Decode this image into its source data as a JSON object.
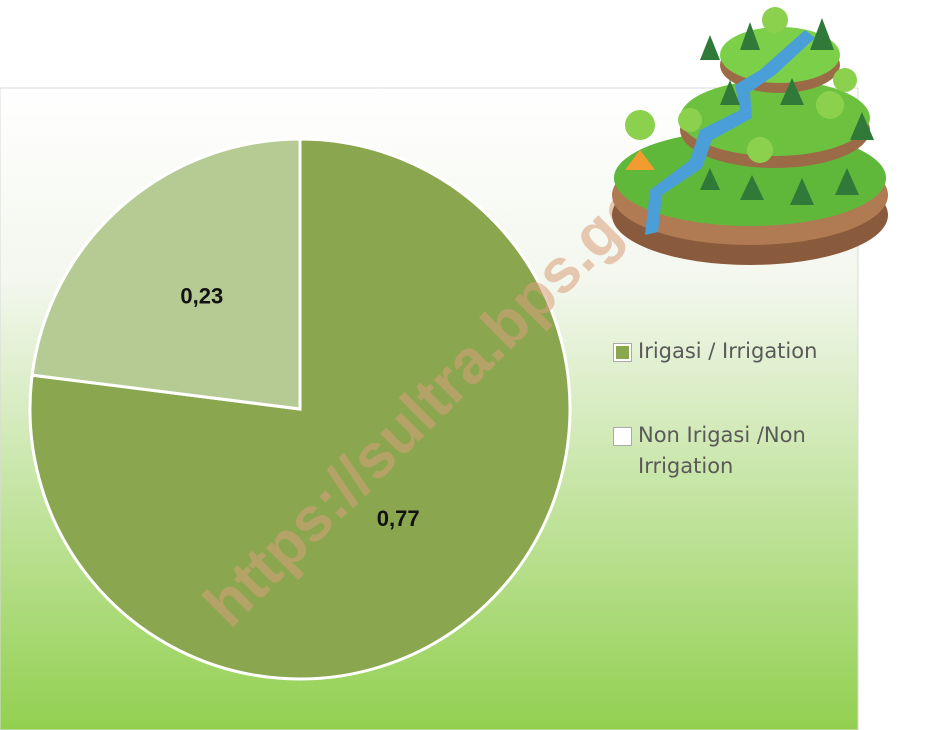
{
  "chart_data": {
    "type": "pie",
    "categories": [
      "Irigasi / Irrigation",
      "Non Irigasi /Non Irrigation"
    ],
    "values": [
      0.77,
      0.23
    ],
    "value_labels": [
      "0,77",
      "0,23"
    ],
    "colors": [
      "#8aa64f",
      "#b6cb93"
    ],
    "watermark": "https://sultra.bps.go",
    "legend": "right"
  }
}
